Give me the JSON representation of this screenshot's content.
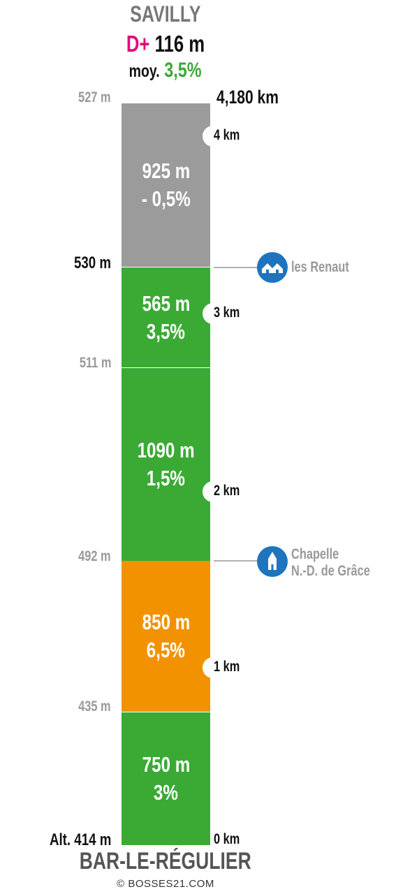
{
  "header": {
    "summit": "SAVILLY",
    "gain_prefix": "D+",
    "gain_value": "116 m",
    "avg_prefix": "moy.",
    "avg_value": "3,5%"
  },
  "top_km_label": "4,180 km",
  "segments": [
    {
      "length": "925 m",
      "grade": "- 0,5%",
      "color": "#9b9b9b"
    },
    {
      "length": "565 m",
      "grade": "3,5%",
      "color": "#3aaa35"
    },
    {
      "length": "1090 m",
      "grade": "1,5%",
      "color": "#3aaa35"
    },
    {
      "length": "850 m",
      "grade": "6,5%",
      "color": "#f39200"
    },
    {
      "length": "750 m",
      "grade": "3%",
      "color": "#3aaa35"
    }
  ],
  "altitudes": [
    "527 m",
    "530 m",
    "511 m",
    "492 m",
    "435 m",
    "Alt. 414 m"
  ],
  "km_markers": [
    "4 km",
    "3 km",
    "2 km",
    "1 km",
    "0 km"
  ],
  "pois": [
    {
      "icon": "houses-icon",
      "line1": "les Renaut",
      "line2": ""
    },
    {
      "icon": "chapel-icon",
      "line1": "Chapelle",
      "line2": "N.-D. de Grâce"
    }
  ],
  "footer": {
    "base": "BAR-LE-RÉGULIER",
    "copyright": "© BOSSES21.COM"
  }
}
